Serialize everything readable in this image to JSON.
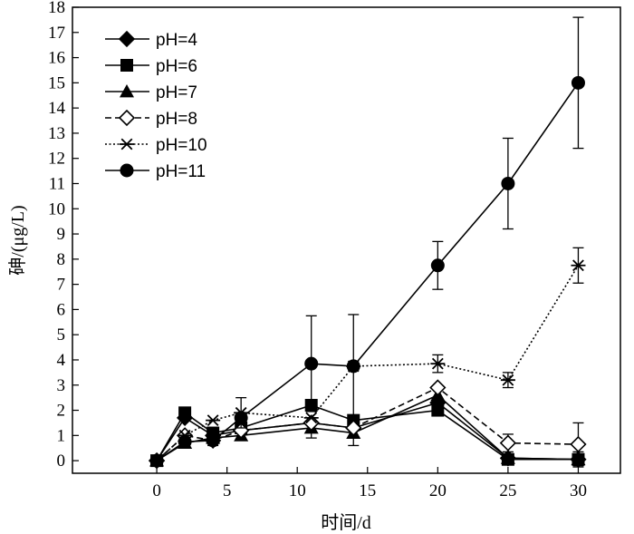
{
  "chart_data": {
    "type": "line",
    "title": "",
    "xlabel": "时间/d",
    "ylabel": "砷/(μg/L)",
    "xlim": [
      -6,
      33
    ],
    "ylim": [
      -0.5,
      18
    ],
    "xticks": [
      0,
      5,
      10,
      15,
      20,
      25,
      30
    ],
    "yticks": [
      0,
      1,
      2,
      3,
      4,
      5,
      6,
      7,
      8,
      9,
      10,
      11,
      12,
      13,
      14,
      15,
      16,
      17,
      18
    ],
    "legend_position": "top-left",
    "grid": false,
    "x": [
      0,
      2,
      4,
      6,
      11,
      14,
      20,
      25,
      30
    ],
    "series": [
      {
        "name": "pH=4",
        "marker": "diamond-filled",
        "line": "solid",
        "values": [
          0,
          1.7,
          1.0,
          1.2,
          1.5,
          1.3,
          2.3,
          0.1,
          0.05
        ],
        "errors": [
          0,
          0,
          0,
          0,
          0,
          0,
          0,
          0,
          0
        ]
      },
      {
        "name": "pH=6",
        "marker": "square-filled",
        "line": "solid",
        "values": [
          0,
          1.9,
          1.1,
          1.3,
          2.2,
          1.6,
          2.0,
          0.05,
          0.05
        ],
        "errors": [
          0,
          0,
          0,
          0,
          0,
          0,
          0,
          0,
          0
        ]
      },
      {
        "name": "pH=7",
        "marker": "triangle-filled",
        "line": "solid",
        "values": [
          0,
          0.7,
          0.9,
          1.0,
          1.3,
          1.1,
          2.6,
          0.1,
          0.05
        ],
        "errors": [
          0,
          0.15,
          0,
          0,
          0.4,
          0.5,
          0,
          0,
          0.3
        ]
      },
      {
        "name": "pH=8",
        "marker": "diamond-open",
        "line": "dashed",
        "values": [
          0,
          1.0,
          0.8,
          1.2,
          1.5,
          1.3,
          2.9,
          0.7,
          0.65
        ],
        "errors": [
          0,
          0,
          0.2,
          0,
          0,
          0,
          0,
          0.35,
          0.85
        ]
      },
      {
        "name": "pH=10",
        "marker": "asterisk",
        "line": "dotted",
        "values": [
          0,
          1.0,
          1.6,
          1.9,
          1.7,
          3.75,
          3.85,
          3.2,
          7.75
        ],
        "errors": [
          0,
          0,
          0,
          0.6,
          0,
          0,
          0.35,
          0.3,
          0.7
        ]
      },
      {
        "name": "pH=11",
        "marker": "circle-filled",
        "line": "solid",
        "values": [
          0,
          0.75,
          0.8,
          1.7,
          3.85,
          3.75,
          7.75,
          11.0,
          15.0
        ],
        "errors": [
          0,
          0,
          0,
          0,
          1.9,
          2.05,
          0.95,
          1.8,
          2.6
        ]
      }
    ]
  }
}
